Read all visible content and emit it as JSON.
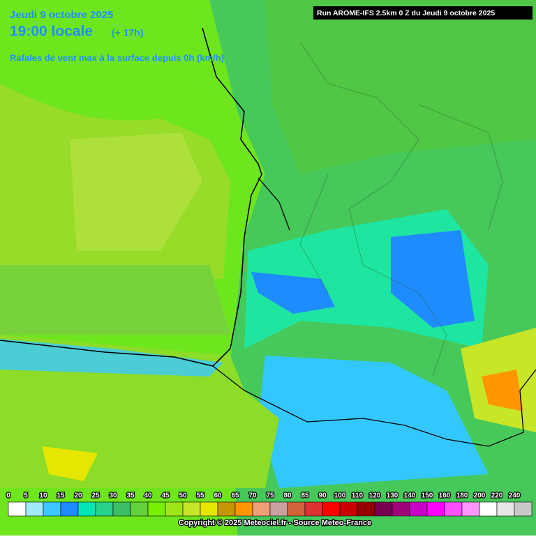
{
  "header": {
    "date": "Jeudi 9 octobre 2025",
    "time": "19:00 locale",
    "lead": "(+ 17h)",
    "subtitle": "Rafales de vent max à la surface depuis 0h (km/h)"
  },
  "run_label": "Run AROME-IFS 2.5km 0 Z du Jeudi 9 octobre 2025",
  "legend": {
    "items": [
      {
        "label": "0",
        "color": "#ffffff"
      },
      {
        "label": "5",
        "color": "#a0eafa"
      },
      {
        "label": "10",
        "color": "#3cc8ff"
      },
      {
        "label": "15",
        "color": "#1e8cff"
      },
      {
        "label": "20",
        "color": "#00e6b4"
      },
      {
        "label": "25",
        "color": "#28d28c"
      },
      {
        "label": "30",
        "color": "#3cbe64"
      },
      {
        "label": "35",
        "color": "#64d23c"
      },
      {
        "label": "40",
        "color": "#78f000"
      },
      {
        "label": "45",
        "color": "#a0e614"
      },
      {
        "label": "50",
        "color": "#c8e628"
      },
      {
        "label": "55",
        "color": "#e6e600"
      },
      {
        "label": "60",
        "color": "#c89600"
      },
      {
        "label": "65",
        "color": "#ff9600"
      },
      {
        "label": "70",
        "color": "#f0a078"
      },
      {
        "label": "75",
        "color": "#c8a0a0"
      },
      {
        "label": "80",
        "color": "#d2643c"
      },
      {
        "label": "85",
        "color": "#dc3232"
      },
      {
        "label": "90",
        "color": "#ff0000"
      },
      {
        "label": "100",
        "color": "#c80000"
      },
      {
        "label": "110",
        "color": "#960000"
      },
      {
        "label": "120",
        "color": "#780050"
      },
      {
        "label": "130",
        "color": "#a00078"
      },
      {
        "label": "140",
        "color": "#c800c8"
      },
      {
        "label": "150",
        "color": "#ff00ff"
      },
      {
        "label": "160",
        "color": "#ff50ff"
      },
      {
        "label": "180",
        "color": "#ff96ff"
      },
      {
        "label": "200",
        "color": "#ffffff"
      },
      {
        "label": "220",
        "color": "#e6e6e6"
      },
      {
        "label": "240",
        "color": "#c8c8c8"
      }
    ]
  },
  "copyright": "Copyright © 2025 Meteociel.fr - Source Meteo-France"
}
